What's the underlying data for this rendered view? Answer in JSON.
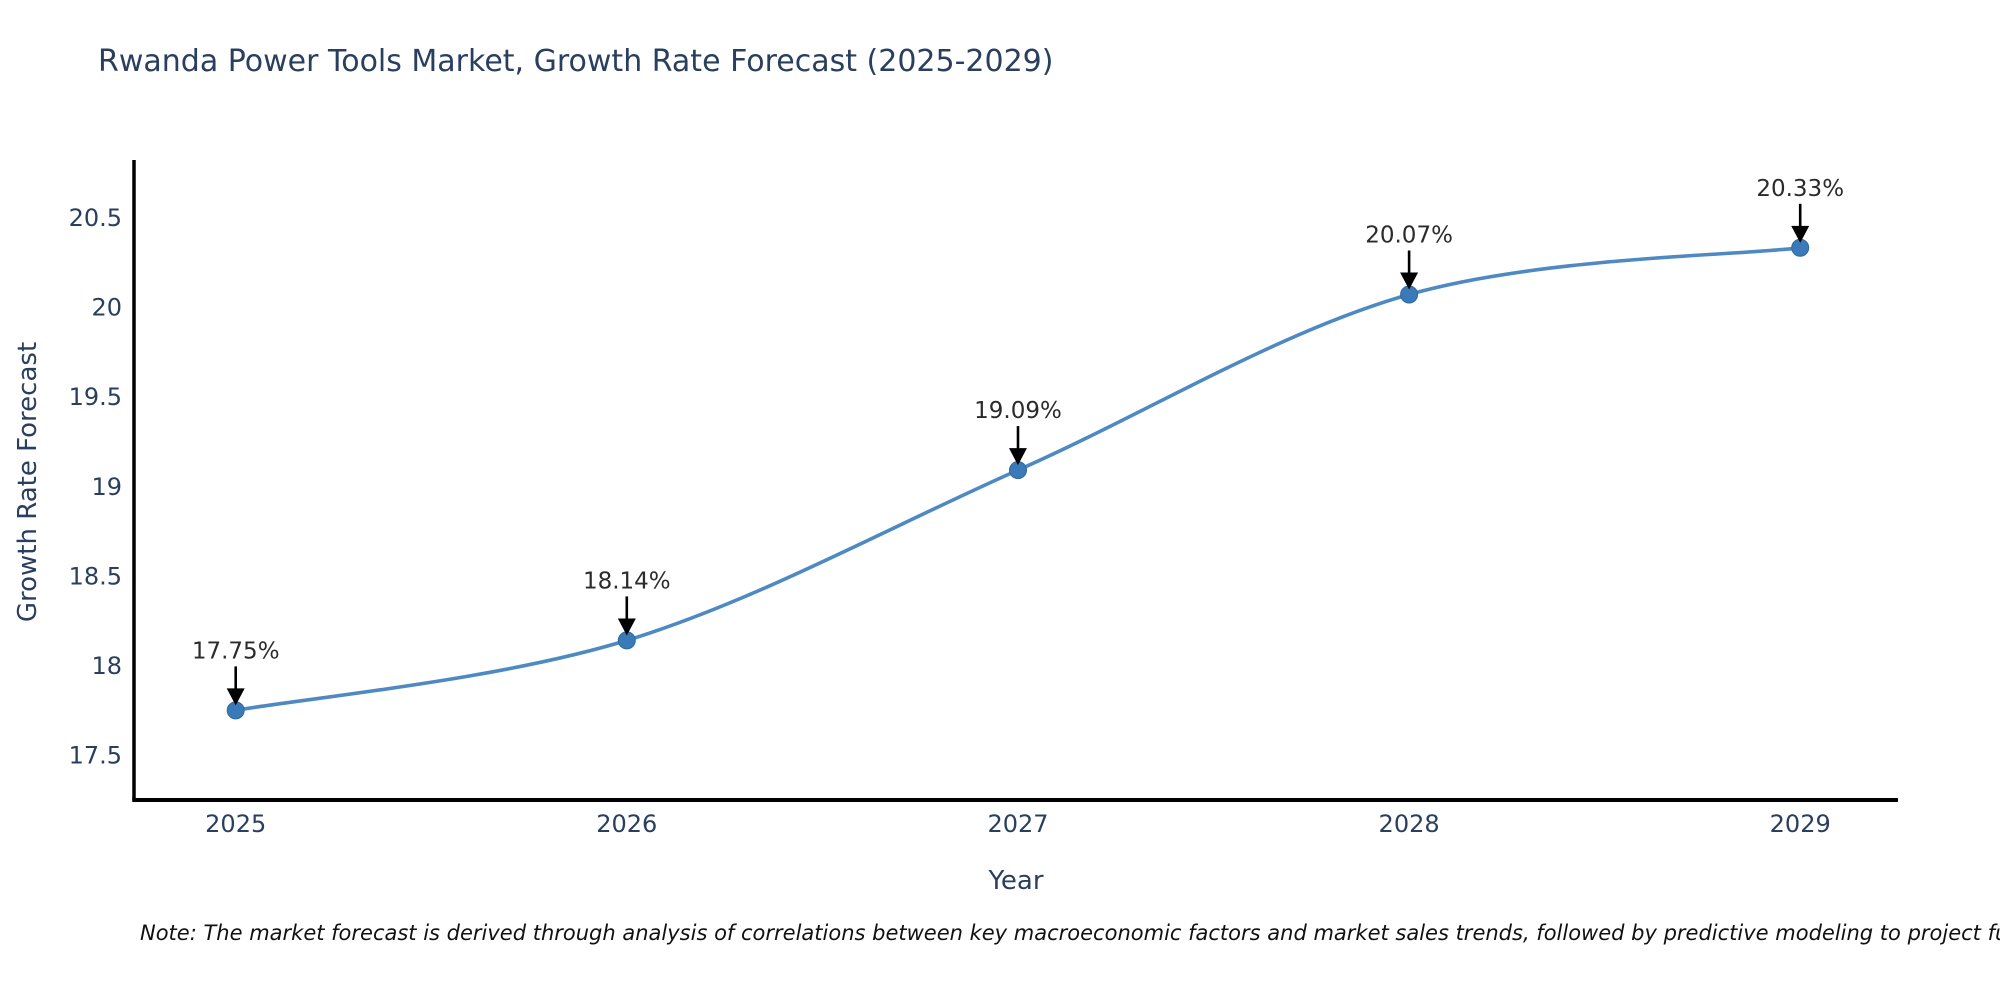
{
  "title": "Rwanda Power Tools Market, Growth Rate Forecast (2025-2029)",
  "note": "Note: The market forecast is derived through analysis of correlations between key macroeconomic factors and market sales trends, followed by predictive modeling to project future sal",
  "chart_data": {
    "type": "line",
    "title": "Rwanda Power Tools Market, Growth Rate Forecast (2025-2029)",
    "xlabel": "Year",
    "ylabel": "Growth Rate Forecast",
    "x": [
      2025,
      2026,
      2027,
      2028,
      2029
    ],
    "values": [
      17.75,
      18.14,
      19.09,
      20.07,
      20.33
    ],
    "point_labels": [
      "17.75%",
      "18.14%",
      "19.09%",
      "20.07%",
      "20.33%"
    ],
    "xticks": [
      2025,
      2026,
      2027,
      2028,
      2029
    ],
    "yticks": [
      17.5,
      18,
      18.5,
      19,
      19.5,
      20,
      20.5
    ],
    "xlim": [
      2024.74,
      2029.25
    ],
    "ylim": [
      17.25,
      20.82
    ],
    "line_shape": "spline",
    "grid": false,
    "legend": "none",
    "colors": {
      "line": "#4e89c2",
      "marker": "#3b7ab8",
      "marker_edge": "#31689e",
      "axis_line": "#000000",
      "tick_text": "#2a3f5f",
      "title_text": "#2a3f5f",
      "annotation_text": "#2b2b2b",
      "arrow": "#000000",
      "background": "#ffffff"
    }
  }
}
